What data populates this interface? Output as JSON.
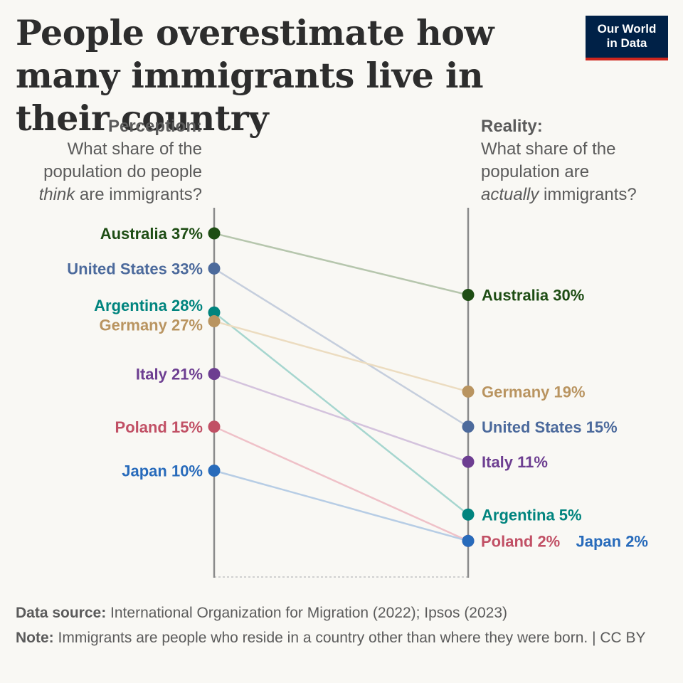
{
  "title": "People overestimate how many immigrants live in their country",
  "logo": {
    "line1": "Our World",
    "line2": "in Data"
  },
  "perception_header": {
    "label": "Perception:",
    "line1": "What share of the",
    "line2": "population do people",
    "line3_em": "think",
    "line3_rest": " are immigrants?"
  },
  "reality_header": {
    "label": "Reality:",
    "line1": "What share of the",
    "line2": "population are",
    "line3_em": "actually",
    "line3_rest": " immigrants?"
  },
  "chart_data": {
    "type": "slope",
    "columns": [
      "Perception",
      "Reality"
    ],
    "unit": "%",
    "series": [
      {
        "name": "Australia",
        "perception": 37,
        "reality": 30,
        "color": "#1e4d14",
        "line_color": "#b6c6ad"
      },
      {
        "name": "United States",
        "perception": 33,
        "reality": 15,
        "color": "#4c6a9c",
        "line_color": "#c5cedd"
      },
      {
        "name": "Argentina",
        "perception": 28,
        "reality": 5,
        "color": "#00847e",
        "line_color": "#a6d6cf"
      },
      {
        "name": "Germany",
        "perception": 27,
        "reality": 19,
        "color": "#b99460",
        "line_color": "#ecdcc0"
      },
      {
        "name": "Italy",
        "perception": 21,
        "reality": 11,
        "color": "#6d3e91",
        "line_color": "#d4c3dd"
      },
      {
        "name": "Poland",
        "perception": 15,
        "reality": 2,
        "color": "#c15065",
        "line_color": "#efc1c8"
      },
      {
        "name": "Japan",
        "perception": 10,
        "reality": 2,
        "color": "#286bbb",
        "line_color": "#b7cde5"
      }
    ]
  },
  "footer": {
    "source_label": "Data source:",
    "source_text": " International Organization for Migration (2022); Ipsos (2023)",
    "note_label": "Note:",
    "note_text": " Immigrants are people who reside in a country other than where they were born. | CC BY"
  }
}
